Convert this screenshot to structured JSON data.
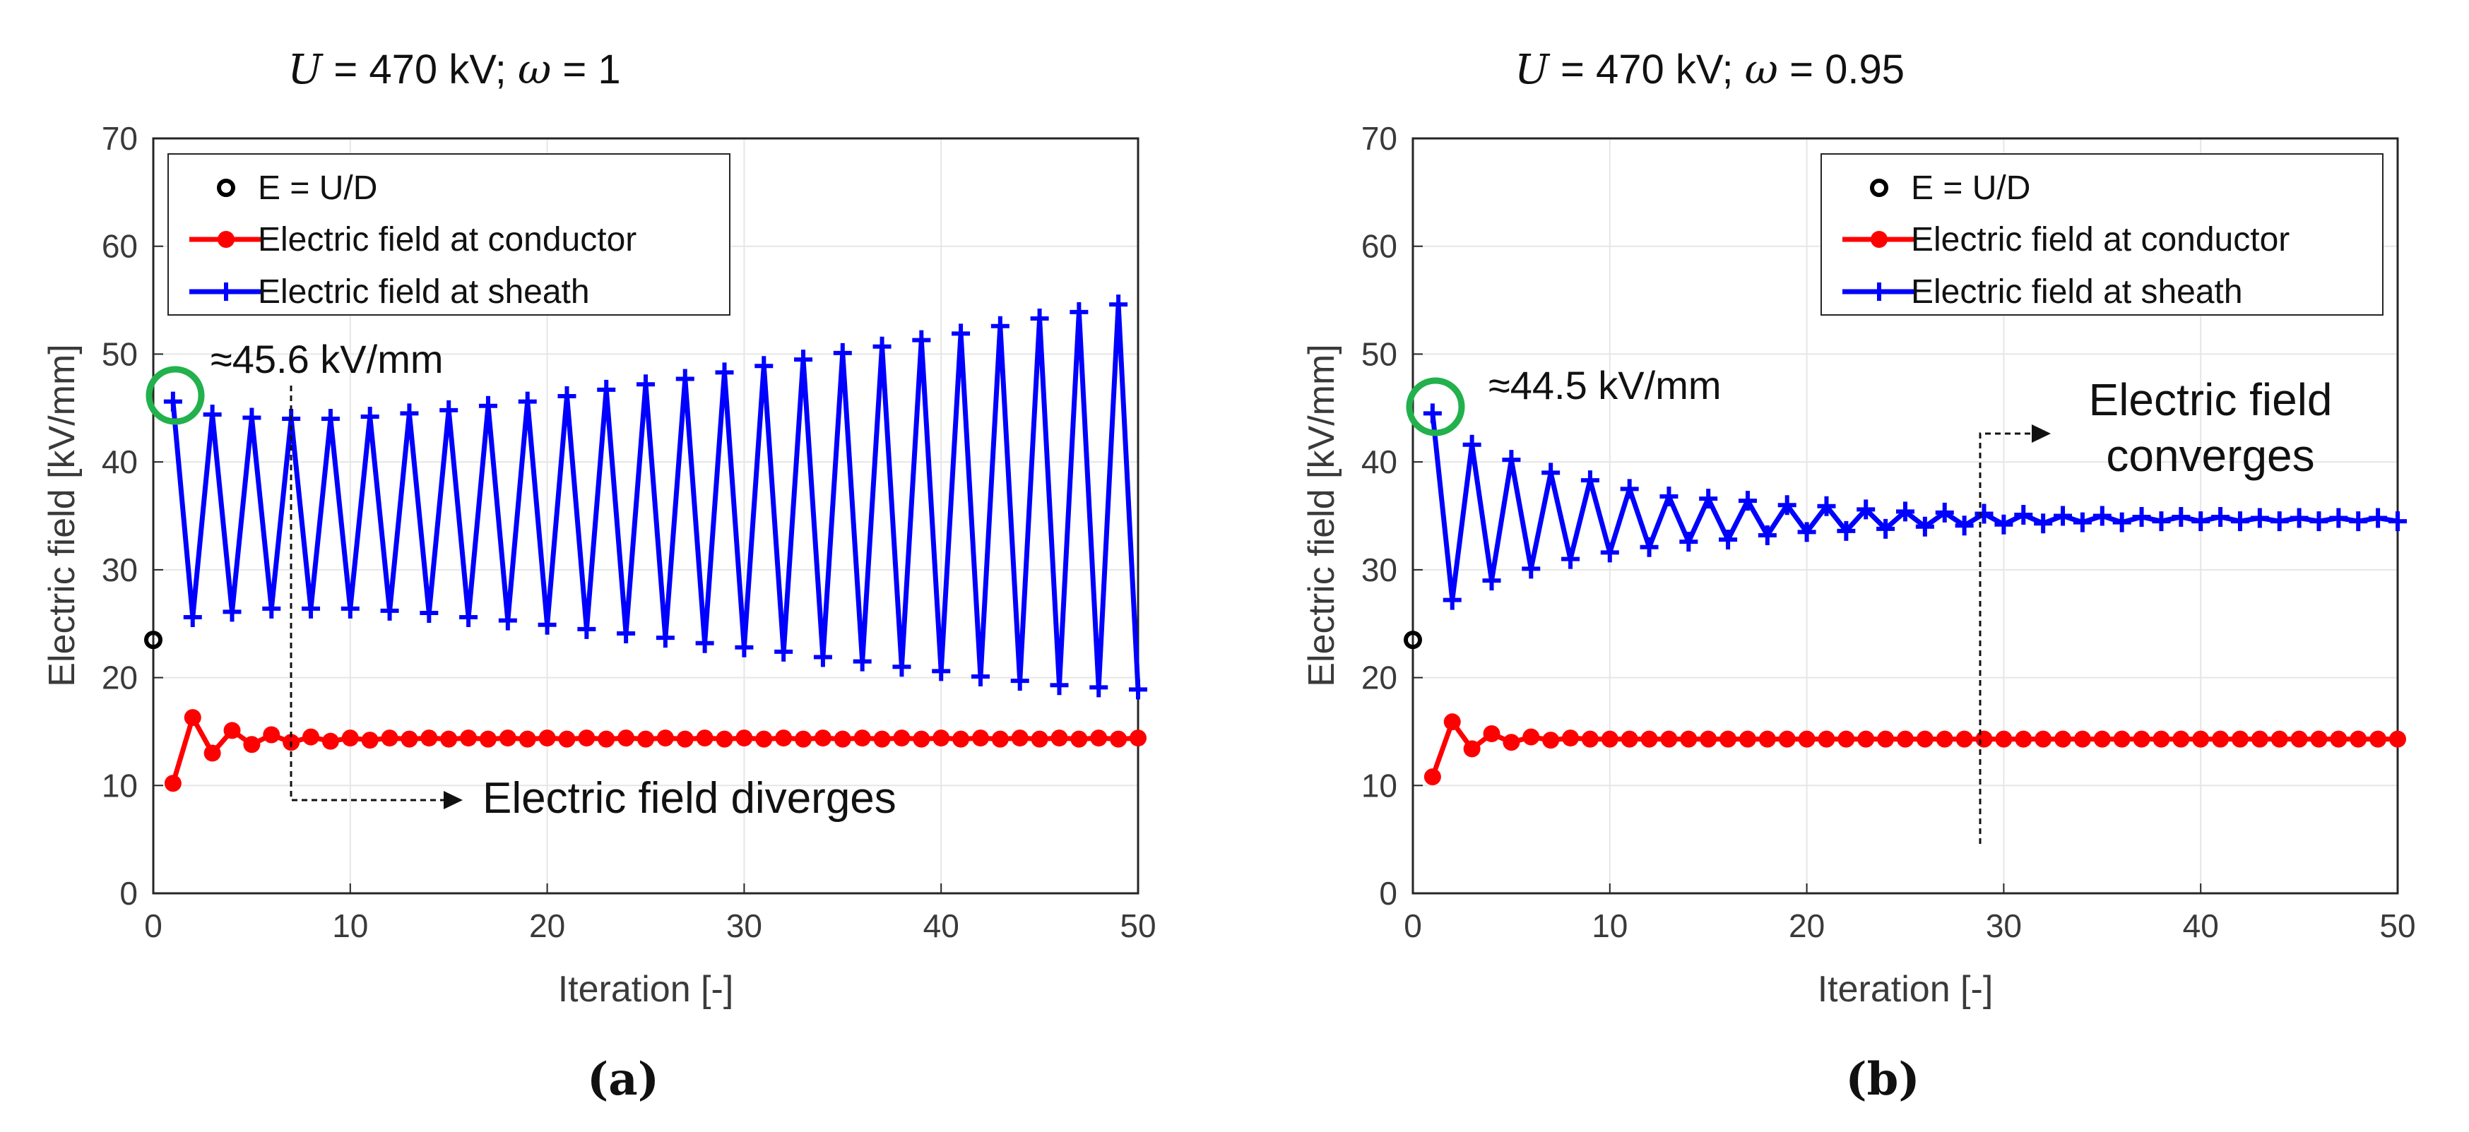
{
  "colors": {
    "conductor": "#ff0000",
    "sheath": "#0000ff",
    "ud_marker": "#000000",
    "highlight_circle": "#22b14c",
    "grid": "#e6e6e6",
    "axis": "#262626",
    "tick_text": "#3a3a3a"
  },
  "chart_data": [
    {
      "type": "line",
      "panel_label": "(a)",
      "title": {
        "var": "U",
        "mid": " = 470 kV; ",
        "param": "ω",
        "tail": " = 1"
      },
      "xlabel": "Iteration [-]",
      "ylabel": "Electric field [kV/mm]",
      "xlim": [
        0,
        50
      ],
      "ylim": [
        0,
        70
      ],
      "xticks": [
        "0",
        "10",
        "20",
        "30",
        "40",
        "50"
      ],
      "yticks": [
        "0",
        "10",
        "20",
        "30",
        "40",
        "50",
        "60",
        "70"
      ],
      "grid": true,
      "legend_position": "top-left",
      "legend": [
        "E = U/D",
        "Electric field at conductor",
        "Electric field at sheath"
      ],
      "ud_point": {
        "x": 0,
        "y": 23.5
      },
      "series": [
        {
          "name": "Electric field at conductor",
          "x": [
            1,
            2,
            3,
            4,
            5,
            6,
            7,
            8,
            9,
            10,
            11,
            12,
            13,
            14,
            15,
            16,
            17,
            18,
            19,
            20,
            21,
            22,
            23,
            24,
            25,
            26,
            27,
            28,
            29,
            30,
            31,
            32,
            33,
            34,
            35,
            36,
            37,
            38,
            39,
            40,
            41,
            42,
            43,
            44,
            45,
            46,
            47,
            48,
            49,
            50
          ],
          "values": [
            10.2,
            16.3,
            13.0,
            15.1,
            13.8,
            14.7,
            14.0,
            14.5,
            14.1,
            14.4,
            14.2,
            14.4,
            14.3,
            14.4,
            14.3,
            14.4,
            14.3,
            14.4,
            14.3,
            14.4,
            14.3,
            14.4,
            14.3,
            14.4,
            14.3,
            14.4,
            14.3,
            14.4,
            14.3,
            14.4,
            14.3,
            14.4,
            14.3,
            14.4,
            14.3,
            14.4,
            14.3,
            14.4,
            14.3,
            14.4,
            14.3,
            14.4,
            14.3,
            14.4,
            14.3,
            14.4,
            14.3,
            14.4,
            14.3,
            14.4
          ]
        },
        {
          "name": "Electric field at sheath",
          "x": [
            1,
            2,
            3,
            4,
            5,
            6,
            7,
            8,
            9,
            10,
            11,
            12,
            13,
            14,
            15,
            16,
            17,
            18,
            19,
            20,
            21,
            22,
            23,
            24,
            25,
            26,
            27,
            28,
            29,
            30,
            31,
            32,
            33,
            34,
            35,
            36,
            37,
            38,
            39,
            40,
            41,
            42,
            43,
            44,
            45,
            46,
            47,
            48,
            49,
            50
          ],
          "values": [
            45.6,
            25.6,
            44.4,
            26.1,
            44.1,
            26.4,
            44.0,
            26.4,
            44.0,
            26.4,
            44.2,
            26.2,
            44.5,
            26.0,
            44.8,
            25.6,
            45.2,
            25.3,
            45.6,
            24.9,
            46.1,
            24.5,
            46.7,
            24.1,
            47.2,
            23.7,
            47.7,
            23.2,
            48.3,
            22.8,
            48.9,
            22.4,
            49.5,
            21.9,
            50.1,
            21.5,
            50.7,
            21.0,
            51.3,
            20.6,
            51.9,
            20.1,
            52.6,
            19.7,
            53.3,
            19.3,
            53.9,
            19.1,
            54.6,
            18.9
          ]
        }
      ],
      "annotations": [
        {
          "text": "≈45.6 kV/mm",
          "x": 6,
          "y": 49.5
        },
        {
          "text": "Electric field diverges",
          "x": 33,
          "y": 9.3
        }
      ]
    },
    {
      "type": "line",
      "panel_label": "(b)",
      "title": {
        "var": "U",
        "mid": " = 470 kV; ",
        "param": "ω",
        "tail": " = 0.95"
      },
      "xlabel": "Iteration [-]",
      "ylabel": "Electric field [kV/mm]",
      "xlim": [
        0,
        50
      ],
      "ylim": [
        0,
        70
      ],
      "xticks": [
        "0",
        "10",
        "20",
        "30",
        "40",
        "50"
      ],
      "yticks": [
        "0",
        "10",
        "20",
        "30",
        "40",
        "50",
        "60",
        "70"
      ],
      "grid": true,
      "legend_position": "top-right",
      "legend": [
        "E = U/D",
        "Electric field at conductor",
        "Electric field at sheath"
      ],
      "ud_point": {
        "x": 0,
        "y": 23.5
      },
      "series": [
        {
          "name": "Electric field at conductor",
          "x": [
            1,
            2,
            3,
            4,
            5,
            6,
            7,
            8,
            9,
            10,
            11,
            12,
            13,
            14,
            15,
            16,
            17,
            18,
            19,
            20,
            21,
            22,
            23,
            24,
            25,
            26,
            27,
            28,
            29,
            30,
            31,
            32,
            33,
            34,
            35,
            36,
            37,
            38,
            39,
            40,
            41,
            42,
            43,
            44,
            45,
            46,
            47,
            48,
            49,
            50
          ],
          "values": [
            10.8,
            15.9,
            13.4,
            14.8,
            14.0,
            14.5,
            14.2,
            14.4,
            14.3,
            14.3,
            14.3,
            14.3,
            14.3,
            14.3,
            14.3,
            14.3,
            14.3,
            14.3,
            14.3,
            14.3,
            14.3,
            14.3,
            14.3,
            14.3,
            14.3,
            14.3,
            14.3,
            14.3,
            14.3,
            14.3,
            14.3,
            14.3,
            14.3,
            14.3,
            14.3,
            14.3,
            14.3,
            14.3,
            14.3,
            14.3,
            14.3,
            14.3,
            14.3,
            14.3,
            14.3,
            14.3,
            14.3,
            14.3,
            14.3,
            14.3
          ]
        },
        {
          "name": "Electric field at sheath",
          "x": [
            1,
            2,
            3,
            4,
            5,
            6,
            7,
            8,
            9,
            10,
            11,
            12,
            13,
            14,
            15,
            16,
            17,
            18,
            19,
            20,
            21,
            22,
            23,
            24,
            25,
            26,
            27,
            28,
            29,
            30,
            31,
            32,
            33,
            34,
            35,
            36,
            37,
            38,
            39,
            40,
            41,
            42,
            43,
            44,
            45,
            46,
            47,
            48,
            49,
            50
          ],
          "values": [
            44.5,
            27.2,
            41.6,
            29.0,
            40.2,
            30.1,
            39.0,
            31.0,
            38.3,
            31.6,
            37.5,
            32.1,
            36.8,
            32.6,
            36.6,
            32.8,
            36.4,
            33.2,
            36.0,
            33.5,
            35.9,
            33.6,
            35.6,
            33.8,
            35.4,
            34.0,
            35.3,
            34.1,
            35.2,
            34.2,
            35.1,
            34.3,
            35.0,
            34.4,
            35.0,
            34.4,
            34.9,
            34.5,
            34.9,
            34.5,
            34.9,
            34.5,
            34.8,
            34.5,
            34.8,
            34.5,
            34.8,
            34.5,
            34.8,
            34.5
          ]
        }
      ],
      "annotations": [
        {
          "text": "≈44.5 kV/mm",
          "x": 7,
          "y": 45.0
        },
        {
          "text": [
            "Electric field",
            "converges"
          ],
          "x": 40.5,
          "y": 42.5
        }
      ]
    }
  ]
}
